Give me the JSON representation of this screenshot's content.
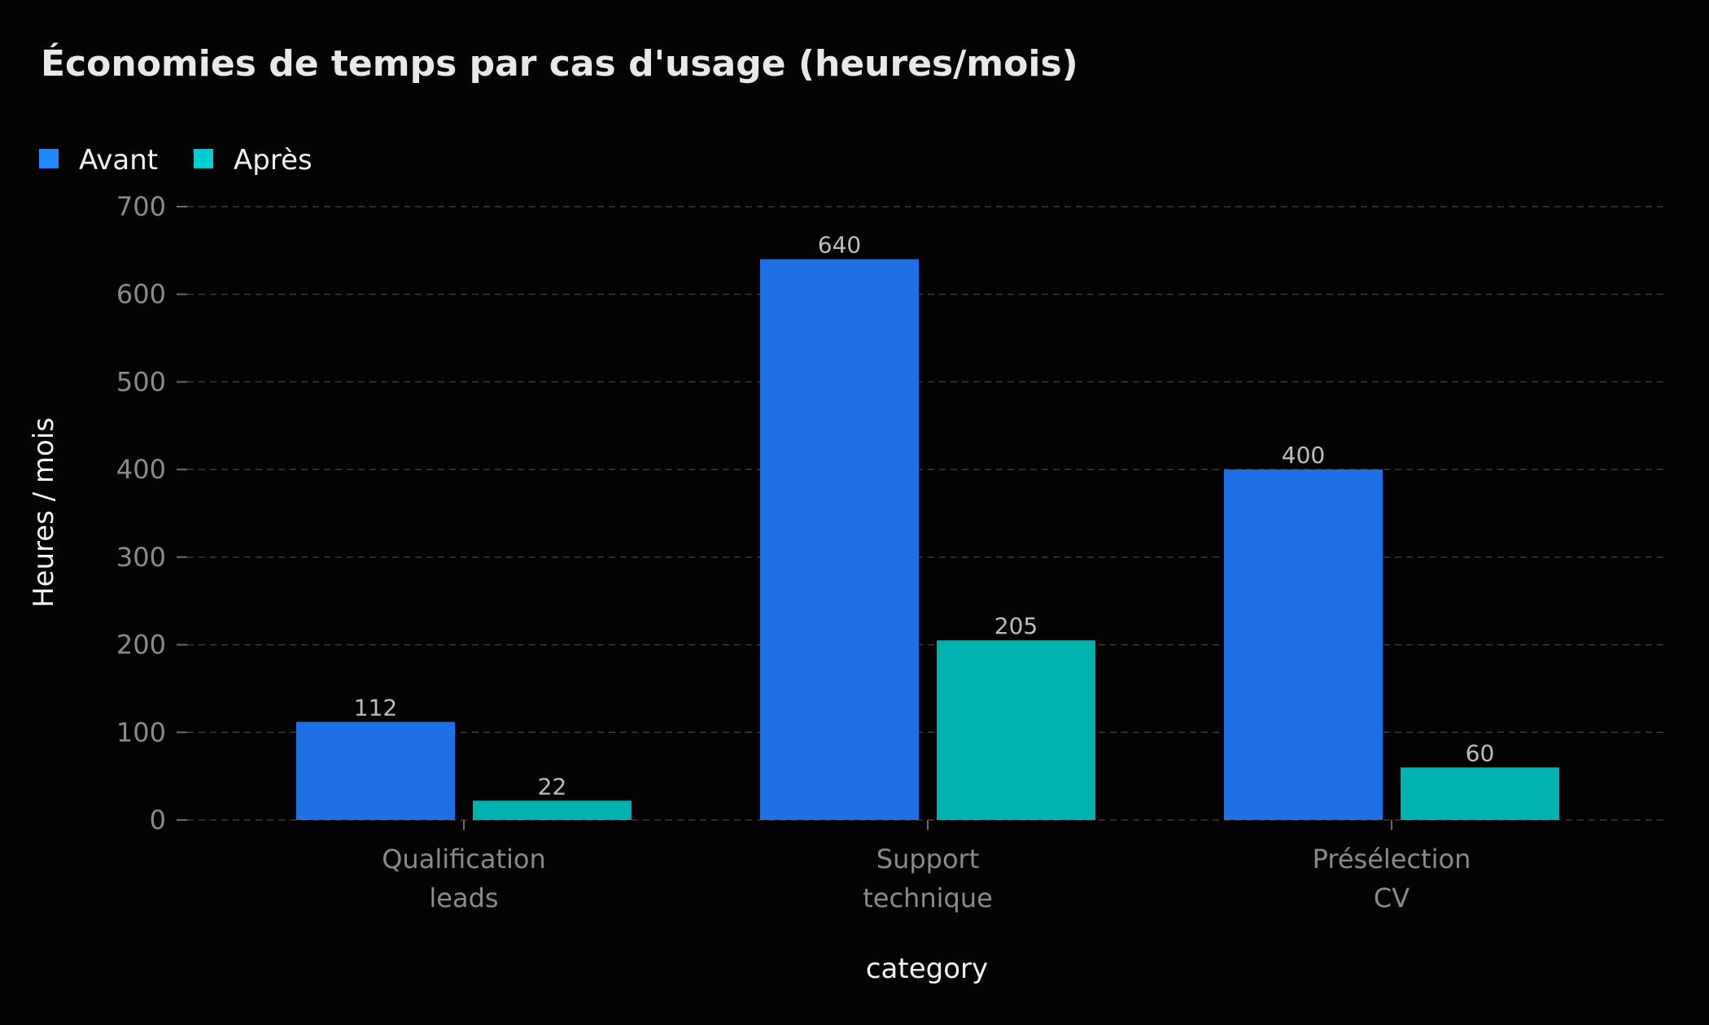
{
  "chart_data": {
    "type": "bar",
    "title": "Économies de temps par cas d'usage (heures/mois)",
    "xlabel": "category",
    "ylabel": "Heures / mois",
    "categories": [
      [
        "Qualification",
        "leads"
      ],
      [
        "Support",
        "technique"
      ],
      [
        "Présélection",
        "CV"
      ]
    ],
    "series": [
      {
        "name": "Avant",
        "values": [
          112,
          640,
          400
        ],
        "color": "#1f6fe5"
      },
      {
        "name": "Après",
        "values": [
          22,
          205,
          60
        ],
        "color": "#00b3b0"
      }
    ],
    "ylim": [
      0,
      700
    ],
    "yticks": [
      0,
      100,
      200,
      300,
      400,
      500,
      600,
      700
    ],
    "grid": true,
    "legend_position": "top-left"
  },
  "colors": {
    "background": "#030303",
    "legend_avant": "#1f87ff",
    "legend_apres": "#00cdd0"
  }
}
